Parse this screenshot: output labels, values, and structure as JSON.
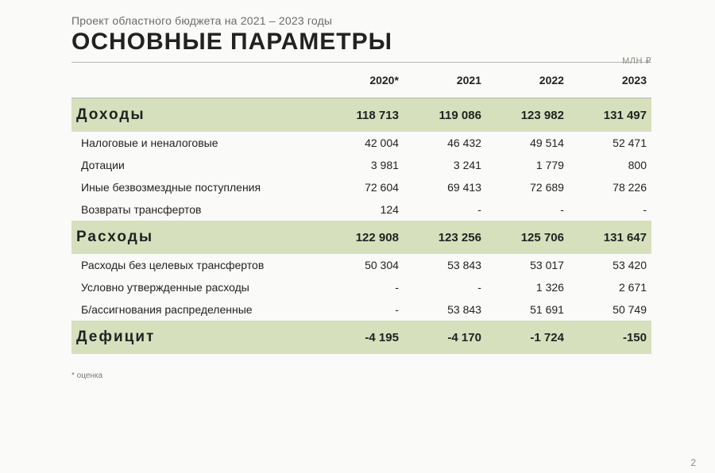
{
  "header": {
    "subtitle": "Проект областного бюджета на 2021 – 2023 годы",
    "title": "ОСНОВНЫЕ ПАРАМЕТРЫ",
    "unit": "МЛН ₽"
  },
  "table": {
    "columns": [
      "",
      "2020*",
      "2021",
      "2022",
      "2023"
    ],
    "sections": [
      {
        "name": "Доходы",
        "totals": [
          "118 713",
          "119 086",
          "123 982",
          "131 497"
        ],
        "rows": [
          {
            "label": "Налоговые и неналоговые",
            "values": [
              "42 004",
              "46 432",
              "49 514",
              "52 471"
            ]
          },
          {
            "label": "Дотации",
            "values": [
              "3 981",
              "3 241",
              "1 779",
              "800"
            ]
          },
          {
            "label": "Иные безвозмездные поступления",
            "values": [
              "72 604",
              "69 413",
              "72 689",
              "78 226"
            ]
          },
          {
            "label": "Возвраты трансфертов",
            "values": [
              "124",
              "-",
              "-",
              "-"
            ]
          }
        ]
      },
      {
        "name": "Расходы",
        "totals": [
          "122 908",
          "123 256",
          "125 706",
          "131 647"
        ],
        "rows": [
          {
            "label": "Расходы без целевых трансфертов",
            "values": [
              "50 304",
              "53 843",
              "53 017",
              "53 420"
            ]
          },
          {
            "label": "Условно утвержденные расходы",
            "values": [
              "-",
              "-",
              "1 326",
              "2 671"
            ]
          },
          {
            "label": "Б/ассигнования распределенные",
            "values": [
              "-",
              "53 843",
              "51 691",
              "50 749"
            ]
          }
        ]
      },
      {
        "name": "Дефицит",
        "totals": [
          "-4 195",
          "-4 170",
          "-1 724",
          "-150"
        ],
        "rows": []
      }
    ]
  },
  "footnote": "* оценка",
  "page_number": "2",
  "style": {
    "section_bg": "#d6e0bd",
    "text_color": "#222222",
    "muted_color": "#6b6b68",
    "grid_color": "#b5b5b0",
    "background": "#fafaf8"
  }
}
